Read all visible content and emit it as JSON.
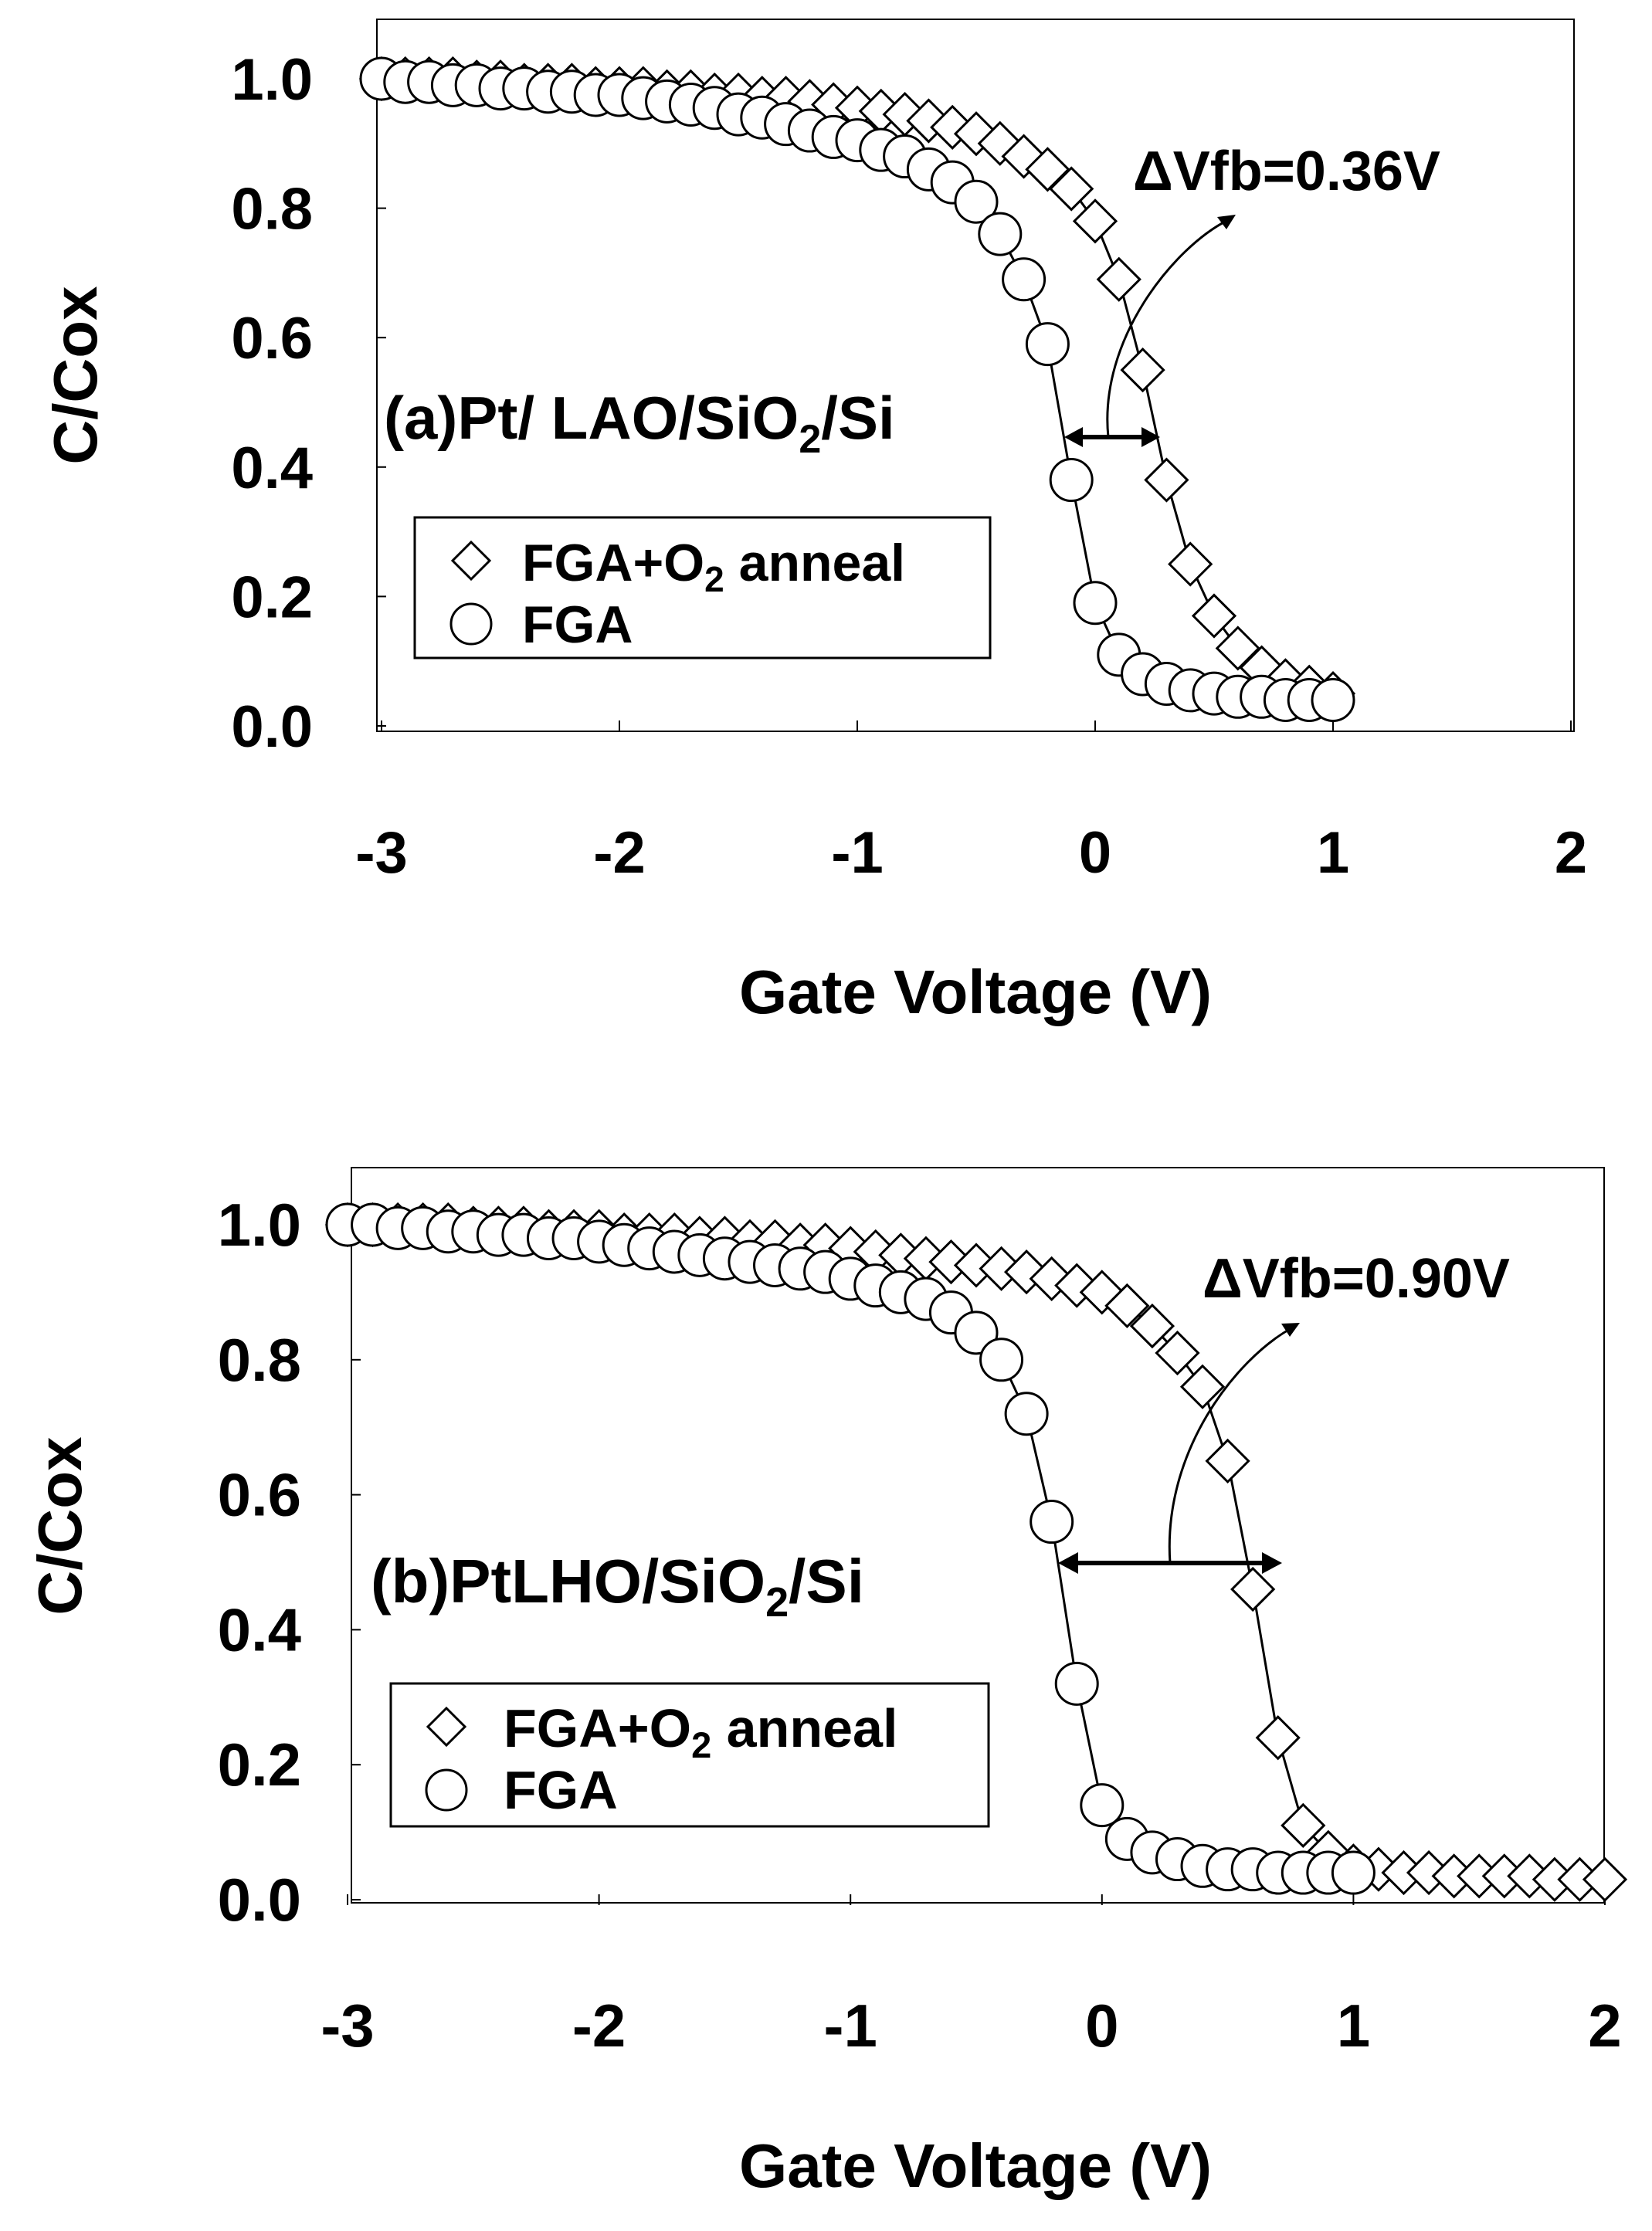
{
  "chart_data": [
    {
      "type": "scatter",
      "panel_label": "(a)Pt/ LAO/SiO",
      "panel_label_sub": "2",
      "panel_label_end": "/Si",
      "xlabel": "Gate Voltage (V)",
      "ylabel": "C/Cox",
      "xlim": [
        -3,
        2
      ],
      "ylim": [
        0,
        1.1
      ],
      "xticks": [
        "-3",
        "-2",
        "-1",
        "0",
        "1",
        "2"
      ],
      "yticks": [
        "0.0",
        "0.2",
        "0.4",
        "0.6",
        "0.8",
        "1.0"
      ],
      "grid": false,
      "legend_position": "lower-left",
      "annotation": "ΔVfb=0.36V",
      "series": [
        {
          "name": "FGA+O",
          "name_sub": "2",
          "name_end": " anneal",
          "marker": "diamond",
          "x": [
            -3.0,
            -2.9,
            -2.8,
            -2.7,
            -2.6,
            -2.5,
            -2.4,
            -2.3,
            -2.2,
            -2.1,
            -2.0,
            -1.9,
            -1.8,
            -1.7,
            -1.6,
            -1.5,
            -1.4,
            -1.3,
            -1.2,
            -1.1,
            -1.0,
            -0.9,
            -0.8,
            -0.7,
            -0.6,
            -0.5,
            -0.4,
            -0.3,
            -0.2,
            -0.1,
            0.0,
            0.1,
            0.2,
            0.3,
            0.4,
            0.5,
            0.6,
            0.7,
            0.8,
            0.9,
            1.0
          ],
          "y": [
            1.0,
            1.0,
            1.0,
            1.0,
            0.995,
            0.995,
            0.99,
            0.99,
            0.99,
            0.985,
            0.985,
            0.985,
            0.98,
            0.98,
            0.975,
            0.975,
            0.97,
            0.97,
            0.965,
            0.96,
            0.955,
            0.95,
            0.945,
            0.935,
            0.925,
            0.915,
            0.9,
            0.88,
            0.86,
            0.83,
            0.78,
            0.69,
            0.55,
            0.38,
            0.25,
            0.17,
            0.12,
            0.09,
            0.07,
            0.06,
            0.05
          ]
        },
        {
          "name": "FGA",
          "marker": "circle",
          "x": [
            -3.0,
            -2.9,
            -2.8,
            -2.7,
            -2.6,
            -2.5,
            -2.4,
            -2.3,
            -2.2,
            -2.1,
            -2.0,
            -1.9,
            -1.8,
            -1.7,
            -1.6,
            -1.5,
            -1.4,
            -1.3,
            -1.2,
            -1.1,
            -1.0,
            -0.9,
            -0.8,
            -0.7,
            -0.6,
            -0.5,
            -0.4,
            -0.3,
            -0.2,
            -0.1,
            0.0,
            0.1,
            0.2,
            0.3,
            0.4,
            0.5,
            0.6,
            0.7,
            0.8,
            0.9,
            1.0
          ],
          "y": [
            1.0,
            0.995,
            0.995,
            0.99,
            0.99,
            0.985,
            0.985,
            0.98,
            0.98,
            0.975,
            0.975,
            0.97,
            0.965,
            0.96,
            0.955,
            0.945,
            0.94,
            0.93,
            0.92,
            0.91,
            0.905,
            0.89,
            0.88,
            0.86,
            0.84,
            0.81,
            0.76,
            0.69,
            0.59,
            0.38,
            0.19,
            0.11,
            0.08,
            0.065,
            0.055,
            0.05,
            0.045,
            0.045,
            0.04,
            0.04,
            0.04
          ]
        }
      ]
    },
    {
      "type": "scatter",
      "panel_label": "(b)PtLHO/SiO",
      "panel_label_sub": "2",
      "panel_label_end": "/Si",
      "xlabel": "Gate Voltage (V)",
      "ylabel": "C/Cox",
      "xlim": [
        -3,
        2
      ],
      "ylim": [
        0,
        1.1
      ],
      "xticks": [
        "-3",
        "-2",
        "-1",
        "0",
        "1",
        "2"
      ],
      "yticks": [
        "0.0",
        "0.2",
        "0.4",
        "0.6",
        "0.8",
        "1.0"
      ],
      "grid": false,
      "legend_position": "lower-left",
      "annotation": "ΔVfb=0.90V",
      "series": [
        {
          "name": "FGA+O",
          "name_sub": "2",
          "name_end": " anneal",
          "marker": "diamond",
          "x": [
            -3.0,
            -2.9,
            -2.8,
            -2.7,
            -2.6,
            -2.5,
            -2.4,
            -2.3,
            -2.2,
            -2.1,
            -2.0,
            -1.9,
            -1.8,
            -1.7,
            -1.6,
            -1.5,
            -1.4,
            -1.3,
            -1.2,
            -1.1,
            -1.0,
            -0.9,
            -0.8,
            -0.7,
            -0.6,
            -0.5,
            -0.4,
            -0.3,
            -0.2,
            -0.1,
            0.0,
            0.1,
            0.2,
            0.3,
            0.4,
            0.5,
            0.6,
            0.7,
            0.8,
            0.9,
            1.0,
            1.1,
            1.2,
            1.3,
            1.4,
            1.5,
            1.6,
            1.7,
            1.8,
            1.9,
            2.0
          ],
          "y": [
            1.0,
            1.0,
            1.0,
            1.0,
            1.0,
            0.995,
            0.995,
            0.995,
            0.99,
            0.99,
            0.99,
            0.985,
            0.985,
            0.985,
            0.98,
            0.98,
            0.975,
            0.975,
            0.97,
            0.97,
            0.965,
            0.96,
            0.955,
            0.95,
            0.945,
            0.94,
            0.935,
            0.93,
            0.92,
            0.91,
            0.9,
            0.88,
            0.85,
            0.81,
            0.76,
            0.65,
            0.46,
            0.24,
            0.11,
            0.07,
            0.05,
            0.045,
            0.04,
            0.04,
            0.035,
            0.035,
            0.035,
            0.035,
            0.03,
            0.03,
            0.03
          ]
        },
        {
          "name": "FGA",
          "marker": "circle",
          "x": [
            -3.0,
            -2.9,
            -2.8,
            -2.7,
            -2.6,
            -2.5,
            -2.4,
            -2.3,
            -2.2,
            -2.1,
            -2.0,
            -1.9,
            -1.8,
            -1.7,
            -1.6,
            -1.5,
            -1.4,
            -1.3,
            -1.2,
            -1.1,
            -1.0,
            -0.9,
            -0.8,
            -0.7,
            -0.6,
            -0.5,
            -0.4,
            -0.3,
            -0.2,
            -0.1,
            0.0,
            0.1,
            0.2,
            0.3,
            0.4,
            0.5,
            0.6,
            0.7,
            0.8,
            0.9,
            1.0
          ],
          "y": [
            1.0,
            1.0,
            0.995,
            0.995,
            0.99,
            0.99,
            0.985,
            0.985,
            0.98,
            0.98,
            0.975,
            0.97,
            0.965,
            0.96,
            0.955,
            0.95,
            0.945,
            0.94,
            0.935,
            0.93,
            0.92,
            0.91,
            0.9,
            0.89,
            0.87,
            0.84,
            0.8,
            0.72,
            0.56,
            0.32,
            0.14,
            0.09,
            0.07,
            0.06,
            0.05,
            0.045,
            0.045,
            0.04,
            0.04,
            0.04,
            0.04
          ]
        }
      ]
    }
  ]
}
